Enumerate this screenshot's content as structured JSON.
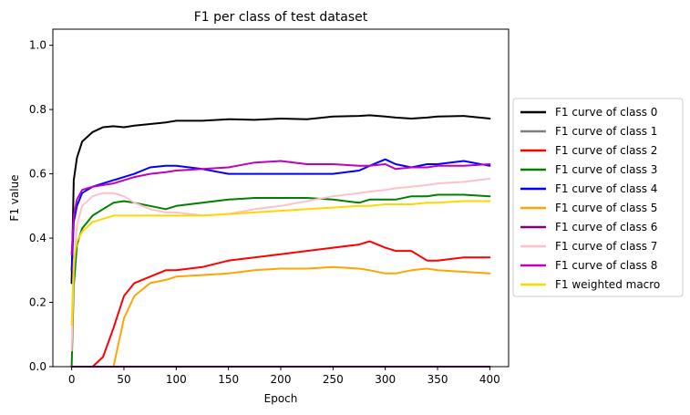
{
  "chart_data": {
    "type": "line",
    "title": "F1 per class of test dataset",
    "xlabel": "Epoch",
    "ylabel": "F1 value",
    "xlim": [
      -18,
      418
    ],
    "ylim": [
      0.0,
      1.05
    ],
    "xticks": [
      0,
      50,
      100,
      150,
      200,
      250,
      300,
      350,
      400
    ],
    "yticks": [
      0.0,
      0.2,
      0.4,
      0.6,
      0.8,
      1.0
    ],
    "ytick_labels": [
      "0.0",
      "0.2",
      "0.4",
      "0.6",
      "0.8",
      "1.0"
    ],
    "grid": false,
    "legend_position": "right-outside",
    "x": [
      0,
      2,
      5,
      10,
      20,
      30,
      40,
      50,
      60,
      75,
      90,
      100,
      125,
      150,
      175,
      200,
      225,
      250,
      275,
      285,
      300,
      310,
      325,
      340,
      350,
      375,
      400
    ],
    "series": [
      {
        "name": "F1 curve of class 0",
        "color": "#000000",
        "values": [
          0.26,
          0.58,
          0.65,
          0.7,
          0.73,
          0.745,
          0.748,
          0.745,
          0.75,
          0.755,
          0.76,
          0.765,
          0.765,
          0.77,
          0.768,
          0.772,
          0.77,
          0.778,
          0.78,
          0.782,
          0.778,
          0.775,
          0.772,
          0.775,
          0.778,
          0.78,
          0.772
        ]
      },
      {
        "name": "F1 curve of class 1",
        "color": "#808080",
        "values": [
          0,
          0,
          0,
          0,
          0,
          0,
          0,
          0,
          0,
          0,
          0,
          0,
          0,
          0,
          0,
          0,
          0,
          0,
          0,
          0,
          0,
          0,
          0,
          0,
          0,
          0,
          0
        ]
      },
      {
        "name": "F1 curve of class 2",
        "color": "#ff0000",
        "values": [
          0,
          0,
          0,
          0,
          0,
          0.03,
          0.12,
          0.22,
          0.26,
          0.28,
          0.3,
          0.3,
          0.31,
          0.33,
          0.34,
          0.35,
          0.36,
          0.37,
          0.38,
          0.39,
          0.37,
          0.36,
          0.36,
          0.33,
          0.33,
          0.34,
          0.34
        ]
      },
      {
        "name": "F1 curve of class 3",
        "color": "#008000",
        "values": [
          0.0,
          0.25,
          0.38,
          0.43,
          0.47,
          0.49,
          0.51,
          0.515,
          0.51,
          0.5,
          0.49,
          0.5,
          0.51,
          0.52,
          0.525,
          0.525,
          0.525,
          0.52,
          0.51,
          0.52,
          0.52,
          0.52,
          0.53,
          0.53,
          0.535,
          0.535,
          0.53
        ]
      },
      {
        "name": "F1 curve of class 4",
        "color": "#0000ff",
        "values": [
          0.3,
          0.45,
          0.5,
          0.54,
          0.56,
          0.57,
          0.58,
          0.59,
          0.6,
          0.62,
          0.625,
          0.625,
          0.615,
          0.6,
          0.6,
          0.6,
          0.6,
          0.6,
          0.61,
          0.625,
          0.645,
          0.63,
          0.62,
          0.63,
          0.63,
          0.64,
          0.625
        ]
      },
      {
        "name": "F1 curve of class 5",
        "color": "#ffa500",
        "values": [
          0,
          0,
          0,
          0,
          0,
          0,
          0,
          0.15,
          0.22,
          0.26,
          0.27,
          0.28,
          0.285,
          0.29,
          0.3,
          0.305,
          0.305,
          0.31,
          0.305,
          0.3,
          0.29,
          0.29,
          0.3,
          0.305,
          0.3,
          0.295,
          0.29
        ]
      },
      {
        "name": "F1 curve of class 6",
        "color": "#800080",
        "values": [
          0,
          0,
          0,
          0,
          0,
          0,
          0,
          0,
          0,
          0,
          0,
          0,
          0,
          0,
          0,
          0,
          0,
          0,
          0,
          0,
          0,
          0,
          0,
          0,
          0,
          0,
          0
        ]
      },
      {
        "name": "F1 curve of class 7",
        "color": "#ffc0cb",
        "values": [
          0.05,
          0.3,
          0.44,
          0.5,
          0.53,
          0.54,
          0.54,
          0.53,
          0.51,
          0.49,
          0.48,
          0.48,
          0.47,
          0.475,
          0.49,
          0.5,
          0.515,
          0.53,
          0.54,
          0.545,
          0.55,
          0.555,
          0.56,
          0.565,
          0.57,
          0.575,
          0.585
        ]
      },
      {
        "name": "F1 curve of class 8",
        "color": "#bf00bf",
        "values": [
          0.35,
          0.47,
          0.52,
          0.55,
          0.56,
          0.565,
          0.57,
          0.58,
          0.59,
          0.6,
          0.605,
          0.61,
          0.615,
          0.62,
          0.635,
          0.64,
          0.63,
          0.63,
          0.625,
          0.625,
          0.63,
          0.615,
          0.62,
          0.62,
          0.625,
          0.625,
          0.63
        ]
      },
      {
        "name": "F1 weighted macro",
        "color": "#ffd700",
        "values": [
          0.13,
          0.33,
          0.39,
          0.42,
          0.45,
          0.46,
          0.47,
          0.47,
          0.47,
          0.47,
          0.47,
          0.47,
          0.47,
          0.475,
          0.48,
          0.485,
          0.49,
          0.495,
          0.5,
          0.5,
          0.505,
          0.505,
          0.505,
          0.51,
          0.51,
          0.515,
          0.515
        ]
      }
    ]
  }
}
